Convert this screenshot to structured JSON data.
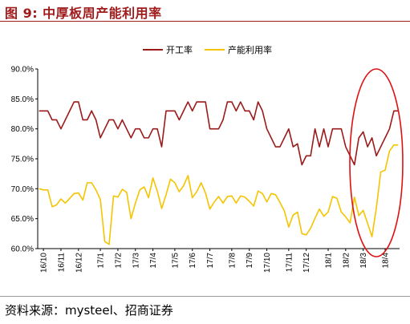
{
  "figure": {
    "title": "图 9:  中厚板周产能利用率",
    "source": "资料来源：mysteel、招商证券"
  },
  "colors": {
    "title": "#a01c1c",
    "series_1": "#9b1b1b",
    "series_2": "#f5c400",
    "highlight": "#e01010"
  },
  "chart_data": {
    "type": "line",
    "title": "",
    "xlabel": "",
    "ylabel": "",
    "ylim": [
      60,
      90
    ],
    "y_ticks": [
      "60.0%",
      "65.0%",
      "70.0%",
      "75.0%",
      "80.0%",
      "85.0%",
      "90.0%"
    ],
    "y_tick_values": [
      60,
      65,
      70,
      75,
      80,
      85,
      90
    ],
    "x_tick_labels": [
      "16/10",
      "16/11",
      "16/12",
      "17/1",
      "17/2",
      "17/3",
      "17/4",
      "17/5",
      "17/6",
      "17/7",
      "17/8",
      "17/9",
      "17/10",
      "17/11",
      "17/12",
      "18/1",
      "18/2",
      "18/3",
      "18/4"
    ],
    "x_tick_weeks": [
      1,
      5,
      9,
      14,
      18,
      22,
      26,
      31,
      35,
      39,
      44,
      48,
      52,
      57,
      61,
      66,
      70,
      74,
      79
    ],
    "grid": false,
    "legend_position": "top",
    "annotation": "red ellipse highlighting latest weeks",
    "series": [
      {
        "name": "开工率",
        "color": "#9b1b1b",
        "values": [
          83.0,
          83.0,
          83.0,
          81.5,
          81.5,
          80.0,
          81.5,
          83.0,
          84.5,
          84.5,
          81.5,
          81.5,
          83.0,
          81.5,
          78.5,
          80.0,
          81.5,
          81.5,
          80.0,
          81.5,
          80.0,
          78.5,
          80.0,
          80.0,
          78.5,
          78.5,
          80.0,
          80.0,
          77.0,
          83.0,
          83.0,
          83.0,
          81.5,
          83.0,
          84.5,
          83.0,
          84.5,
          84.5,
          84.5,
          80.0,
          80.0,
          80.0,
          81.5,
          84.5,
          84.5,
          83.0,
          84.5,
          83.0,
          83.0,
          81.5,
          84.5,
          83.0,
          80.0,
          78.5,
          77.0,
          77.0,
          78.5,
          80.0,
          77.0,
          77.5,
          74.0,
          75.5,
          75.5,
          80.0,
          77.0,
          80.0,
          77.0,
          80.0,
          80.0,
          80.0,
          77.0,
          75.5,
          74.0,
          78.5,
          79.5,
          77.0,
          78.5,
          75.5,
          77.0,
          78.5,
          80.0,
          83.0,
          83.0
        ]
      },
      {
        "name": "产能利用率",
        "color": "#f5c400",
        "values": [
          70.0,
          69.8,
          69.8,
          67.0,
          67.3,
          68.3,
          67.6,
          68.4,
          69.2,
          69.3,
          68.1,
          71.0,
          71.0,
          69.8,
          68.2,
          61.2,
          60.7,
          68.8,
          68.6,
          69.9,
          69.4,
          65.0,
          67.6,
          69.8,
          70.3,
          68.5,
          71.8,
          69.6,
          66.7,
          69.0,
          71.6,
          71.0,
          69.5,
          70.5,
          72.2,
          68.5,
          69.5,
          71.0,
          69.3,
          66.6,
          67.8,
          68.7,
          67.6,
          68.7,
          68.8,
          67.6,
          68.8,
          68.6,
          67.9,
          67.1,
          69.6,
          69.2,
          67.8,
          69.2,
          69.0,
          67.7,
          66.3,
          63.6,
          65.6,
          66.1,
          62.5,
          62.3,
          63.4,
          65.1,
          66.6,
          65.4,
          66.1,
          68.7,
          68.4,
          66.1,
          65.3,
          64.3,
          68.6,
          65.5,
          66.4,
          64.2,
          62.0,
          66.8,
          72.8,
          73.1,
          76.3,
          77.3,
          77.3
        ]
      }
    ]
  }
}
